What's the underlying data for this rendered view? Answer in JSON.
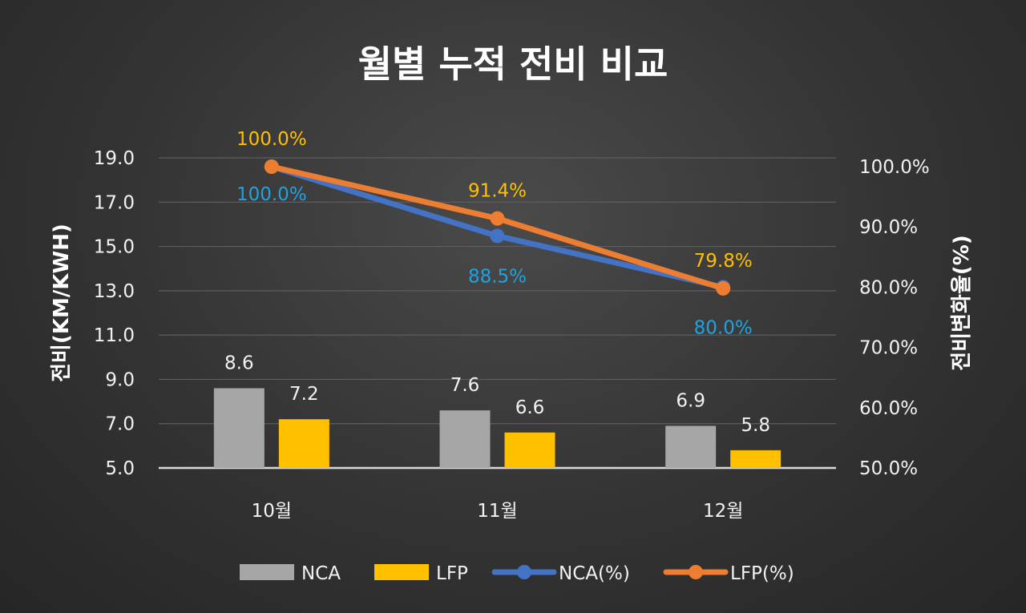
{
  "chart_data": {
    "type": "bar",
    "title": "월별 누적 전비 비교",
    "categories": [
      "10월",
      "11월",
      "12월"
    ],
    "ylabel": "전비(KM/KWH)",
    "y2label": "전비변화율(%)",
    "ylim": [
      5.0,
      19.0
    ],
    "yticks": [
      "5.0",
      "7.0",
      "9.0",
      "11.0",
      "13.0",
      "15.0",
      "17.0",
      "19.0"
    ],
    "y2lim": [
      50.0,
      100.0
    ],
    "y2ticks": [
      "50.0%",
      "60.0%",
      "70.0%",
      "80.0%",
      "90.0%",
      "100.0%"
    ],
    "grid": true,
    "legend_position": "bottom",
    "bar_series": [
      {
        "name": "NCA",
        "values": [
          8.6,
          7.6,
          6.9
        ],
        "labels": [
          "8.6",
          "7.6",
          "6.9"
        ],
        "color": "#a6a6a6"
      },
      {
        "name": "LFP",
        "values": [
          7.2,
          6.6,
          5.8
        ],
        "labels": [
          "7.2",
          "6.6",
          "5.8"
        ],
        "color": "#ffc000"
      }
    ],
    "line_series": [
      {
        "name": "NCA(%)",
        "values": [
          100.0,
          88.5,
          80.0
        ],
        "labels": [
          "100.0%",
          "88.5%",
          "80.0%"
        ],
        "color": "#4472c4",
        "label_color": "#1fa3e0"
      },
      {
        "name": "LFP(%)",
        "values": [
          100.0,
          91.4,
          79.8
        ],
        "labels": [
          "100.0%",
          "91.4%",
          "79.8%"
        ],
        "color": "#ed7d31",
        "label_color": "#ffc000"
      }
    ]
  }
}
